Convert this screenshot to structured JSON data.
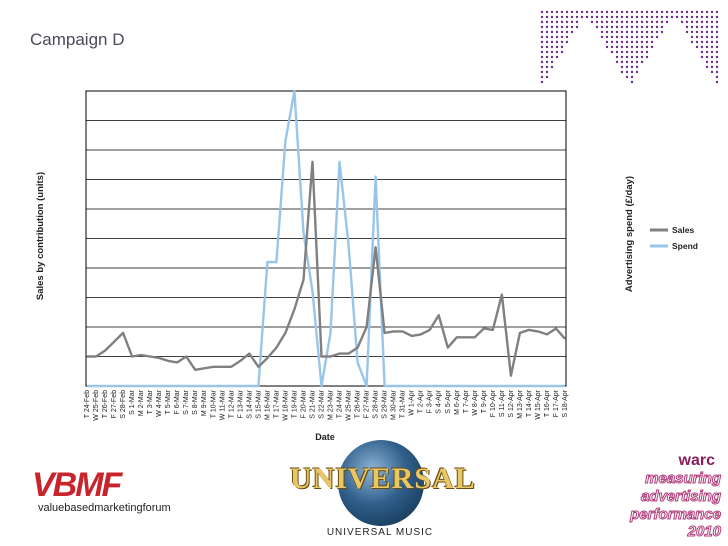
{
  "page": {
    "title": "Campaign D"
  },
  "colors": {
    "sales": "#808080",
    "spend": "#99c5e8",
    "grid": "#000000",
    "brand_purple": "#6b2d86"
  },
  "chart_data": {
    "type": "line",
    "title": "",
    "xlabel": "Date",
    "ylabel": "Sales by contribution (units)",
    "y2label": "Advertising spend (£/day)",
    "grid": true,
    "legend_position": "right",
    "x": [
      "T 24-Feb",
      "W 25-Feb",
      "T 26-Feb",
      "F 27-Feb",
      "S 28-Feb",
      "S 1-Mar",
      "M 2-Mar",
      "T 3-Mar",
      "W 4-Mar",
      "T 5-Mar",
      "F 6-Mar",
      "S 7-Mar",
      "S 8-Mar",
      "M 9-Mar",
      "T 10-Mar",
      "W 11-Mar",
      "T 12-Mar",
      "F 13-Mar",
      "S 14-Mar",
      "S 15-Mar",
      "M 16-Mar",
      "T 17-Mar",
      "W 18-Mar",
      "T 19-Mar",
      "F 20-Mar",
      "S 21-Mar",
      "S 22-Mar",
      "M 23-Mar",
      "T 24-Mar",
      "W 25-Mar",
      "T 26-Mar",
      "F 27-Mar",
      "S 28-Mar",
      "S 29-Mar",
      "M 30-Mar",
      "T 31-Mar",
      "W 1-Apr",
      "T 2-Apr",
      "F 3-Apr",
      "S 4-Apr",
      "S 5-Apr",
      "M 6-Apr",
      "T 7-Apr",
      "W 8-Apr",
      "T 9-Apr",
      "F 10-Apr",
      "S 11-Apr",
      "S 12-Apr",
      "M 13-Apr",
      "T 14-Apr",
      "W 15-Apr",
      "T 16-Apr",
      "F 17-Apr",
      "S 18-Apr"
    ],
    "series": [
      {
        "name": "Sales",
        "values": [
          1.0,
          1.0,
          1.2,
          1.5,
          1.8,
          1.0,
          1.05,
          1.0,
          0.95,
          0.85,
          0.8,
          1.0,
          0.55,
          0.6,
          0.65,
          0.65,
          0.65,
          0.85,
          1.1,
          0.65,
          0.95,
          1.3,
          1.8,
          2.6,
          3.6,
          7.6,
          1.0,
          1.0,
          1.1,
          1.1,
          1.3,
          2.0,
          4.7,
          1.8,
          1.85,
          1.85,
          1.7,
          1.75,
          1.9,
          2.4,
          1.3,
          1.65,
          1.65,
          1.65,
          1.95,
          1.9,
          3.1,
          0.35,
          1.8,
          1.9,
          1.85,
          1.75,
          1.95,
          1.6
        ]
      },
      {
        "name": "Spend",
        "values": [
          0,
          0,
          0,
          0,
          0,
          0,
          0,
          0,
          0,
          0,
          0,
          0,
          0,
          0,
          0,
          0,
          0,
          0,
          0,
          0,
          4.2,
          4.2,
          8.3,
          10.0,
          5.2,
          3.2,
          0,
          1.8,
          7.6,
          4.8,
          0.8,
          0,
          7.1,
          0,
          0,
          0,
          0,
          0,
          0,
          0,
          0,
          0,
          0,
          0,
          0,
          0,
          0,
          0,
          0,
          0,
          0,
          0,
          0,
          0
        ]
      }
    ],
    "ylim": [
      0,
      10
    ]
  },
  "legend": {
    "items": [
      "Sales",
      "Spend"
    ]
  },
  "logos": {
    "vbmf_mark": "VBMF",
    "vbmf_text": "valuebasedmarketingforum",
    "universal_word": "UNIVERSAL",
    "universal_music": "UNIVERSAL MUSIC",
    "warc_word": "warc",
    "warc_lines": [
      "measuring",
      "advertising",
      "performance",
      "2010"
    ]
  }
}
